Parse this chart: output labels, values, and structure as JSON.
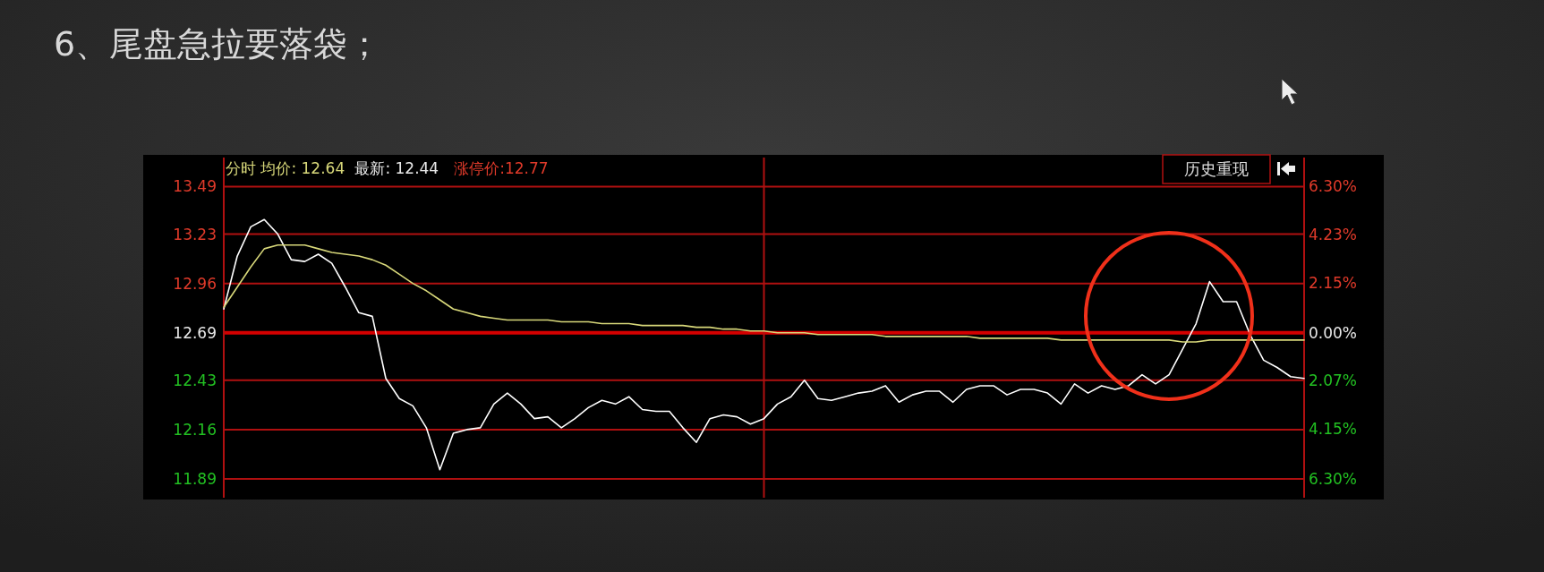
{
  "chart_data": {
    "type": "line",
    "title": "6、尾盘急拉要落袋；",
    "annotations": [
      "分时 均价: 12.64",
      "最新: 12.44",
      "涨停价:12.77",
      "历史重现"
    ],
    "categories": [
      null,
      null,
      null,
      null,
      null,
      null,
      null,
      null,
      null,
      null,
      null,
      null,
      null,
      null,
      null,
      null,
      null,
      null,
      null,
      null,
      null,
      null,
      null,
      null,
      null,
      null,
      null,
      null,
      null,
      null,
      null,
      null,
      null,
      null,
      null,
      null,
      null,
      null,
      null,
      null,
      null,
      null,
      null,
      null,
      null,
      null,
      null,
      null,
      null,
      null,
      null,
      null,
      null,
      null,
      null,
      null,
      null,
      null,
      null,
      null,
      null,
      null,
      null,
      null,
      null,
      null,
      null,
      null,
      null,
      null,
      null,
      null,
      null,
      null,
      null,
      null,
      null,
      null,
      null,
      null,
      null
    ],
    "series": [
      {
        "color": "#ffffff",
        "values": [
          12.82,
          13.11,
          13.27,
          13.31,
          13.23,
          13.09,
          13.08,
          13.12,
          13.07,
          12.94,
          12.8,
          12.78,
          12.44,
          12.33,
          12.29,
          12.17,
          11.94,
          12.14,
          12.16,
          12.17,
          12.3,
          12.36,
          12.3,
          12.22,
          12.23,
          12.17,
          12.22,
          12.28,
          12.32,
          12.3,
          12.34,
          12.27,
          12.26,
          12.26,
          12.17,
          12.09,
          12.22,
          12.24,
          12.23,
          12.19,
          12.22,
          12.3,
          12.34,
          12.43,
          12.33,
          12.32,
          12.34,
          12.36,
          12.37,
          12.4,
          12.31,
          12.35,
          12.37,
          12.37,
          12.31,
          12.38,
          12.4,
          12.4,
          12.35,
          12.38,
          12.38,
          12.36,
          12.3,
          12.41,
          12.36,
          12.4,
          12.38,
          12.4,
          12.46,
          12.41,
          12.46,
          12.6,
          12.74,
          12.97,
          12.86,
          12.86,
          12.68,
          12.54,
          12.5,
          12.45,
          12.44
        ]
      },
      {
        "color": "#d8d87a",
        "values": [
          12.83,
          12.94,
          13.05,
          13.15,
          13.17,
          13.17,
          13.17,
          13.15,
          13.13,
          13.12,
          13.11,
          13.09,
          13.06,
          13.01,
          12.96,
          12.92,
          12.87,
          12.82,
          12.8,
          12.78,
          12.77,
          12.76,
          12.76,
          12.76,
          12.76,
          12.75,
          12.75,
          12.75,
          12.74,
          12.74,
          12.74,
          12.73,
          12.73,
          12.73,
          12.73,
          12.72,
          12.72,
          12.71,
          12.71,
          12.7,
          12.7,
          12.69,
          12.69,
          12.69,
          12.68,
          12.68,
          12.68,
          12.68,
          12.68,
          12.67,
          12.67,
          12.67,
          12.67,
          12.67,
          12.67,
          12.67,
          12.66,
          12.66,
          12.66,
          12.66,
          12.66,
          12.66,
          12.65,
          12.65,
          12.65,
          12.65,
          12.65,
          12.65,
          12.65,
          12.65,
          12.65,
          12.64,
          12.64,
          12.65,
          12.65,
          12.65,
          12.65,
          12.65,
          12.65,
          12.65,
          12.65
        ]
      }
    ],
    "ylim": [
      11.89,
      13.49
    ],
    "yticks": [
      13.49,
      13.23,
      12.96,
      12.69,
      12.43,
      12.16,
      11.89
    ],
    "y2lim": [
      -6.3,
      6.3
    ],
    "y2ticks": [
      {
        "value": 6.3,
        "label": "6.30%"
      },
      {
        "value": 4.23,
        "label": "4.23%"
      },
      {
        "value": 2.15,
        "label": "2.15%"
      },
      {
        "value": 0,
        "label": "0.00%"
      },
      {
        "value": -2.07,
        "label": "2.07%"
      },
      {
        "value": -4.15,
        "label": "4.15%"
      },
      {
        "value": -6.3,
        "label": "6.30%"
      }
    ],
    "ref_lines": [
      {
        "axis": "y",
        "value": 12.69,
        "color": "#d40000"
      }
    ],
    "grid": "y"
  }
}
